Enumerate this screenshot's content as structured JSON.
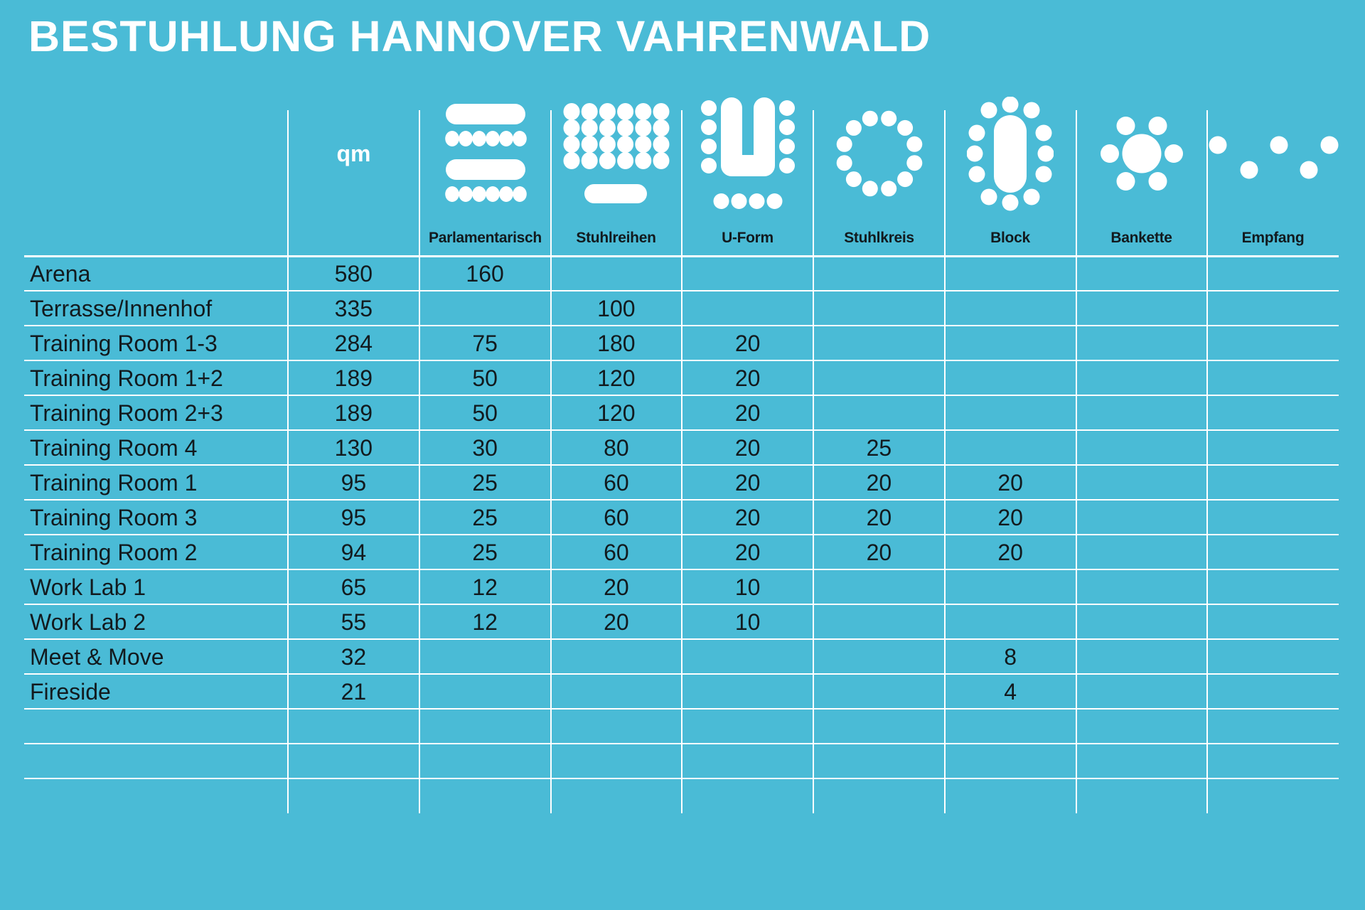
{
  "title": "BESTUHLUNG HANNOVER VAHRENWALD",
  "colors": {
    "background": "#4ABBD6",
    "line": "#FFFFFF",
    "title_text": "#FFFFFF",
    "data_text": "#121A1E"
  },
  "table": {
    "unit_header": "qm",
    "columns": [
      {
        "label": "Parlamentarisch",
        "icon": "parlamentarisch-icon"
      },
      {
        "label": "Stuhlreihen",
        "icon": "stuhlreihen-icon"
      },
      {
        "label": "U-Form",
        "icon": "u-form-icon"
      },
      {
        "label": "Stuhlkreis",
        "icon": "stuhlkreis-icon"
      },
      {
        "label": "Block",
        "icon": "block-icon"
      },
      {
        "label": "Bankette",
        "icon": "bankette-icon"
      },
      {
        "label": "Empfang",
        "icon": "empfang-icon"
      }
    ],
    "rows": [
      {
        "name": "Arena",
        "qm": "580",
        "values": [
          "160",
          "",
          "",
          "",
          "",
          "",
          ""
        ]
      },
      {
        "name": "Terrasse/Innenhof",
        "qm": "335",
        "values": [
          "",
          "100",
          "",
          "",
          "",
          "",
          ""
        ]
      },
      {
        "name": "Training Room 1-3",
        "qm": "284",
        "values": [
          "75",
          "180",
          "20",
          "",
          "",
          "",
          ""
        ]
      },
      {
        "name": "Training Room 1+2",
        "qm": "189",
        "values": [
          "50",
          "120",
          "20",
          "",
          "",
          "",
          ""
        ]
      },
      {
        "name": "Training Room 2+3",
        "qm": "189",
        "values": [
          "50",
          "120",
          "20",
          "",
          "",
          "",
          ""
        ]
      },
      {
        "name": "Training Room 4",
        "qm": "130",
        "values": [
          "30",
          "80",
          "20",
          "25",
          "",
          "",
          ""
        ]
      },
      {
        "name": "Training Room 1",
        "qm": "95",
        "values": [
          "25",
          "60",
          "20",
          "20",
          "20",
          "",
          ""
        ]
      },
      {
        "name": "Training Room 3",
        "qm": "95",
        "values": [
          "25",
          "60",
          "20",
          "20",
          "20",
          "",
          ""
        ]
      },
      {
        "name": "Training Room 2",
        "qm": "94",
        "values": [
          "25",
          "60",
          "20",
          "20",
          "20",
          "",
          ""
        ]
      },
      {
        "name": "Work Lab 1",
        "qm": "65",
        "values": [
          "12",
          "20",
          "10",
          "",
          "",
          "",
          ""
        ]
      },
      {
        "name": "Work Lab 2",
        "qm": "55",
        "values": [
          "12",
          "20",
          "10",
          "",
          "",
          "",
          ""
        ]
      },
      {
        "name": "Meet & Move",
        "qm": "32",
        "values": [
          "",
          "",
          "",
          "",
          "8",
          "",
          ""
        ]
      },
      {
        "name": "Fireside",
        "qm": "21",
        "values": [
          "",
          "",
          "",
          "",
          "4",
          "",
          ""
        ]
      },
      {
        "name": "",
        "qm": "",
        "values": [
          "",
          "",
          "",
          "",
          "",
          "",
          ""
        ]
      },
      {
        "name": "",
        "qm": "",
        "values": [
          "",
          "",
          "",
          "",
          "",
          "",
          ""
        ]
      },
      {
        "name": "",
        "qm": "",
        "values": [
          "",
          "",
          "",
          "",
          "",
          "",
          ""
        ]
      }
    ]
  }
}
